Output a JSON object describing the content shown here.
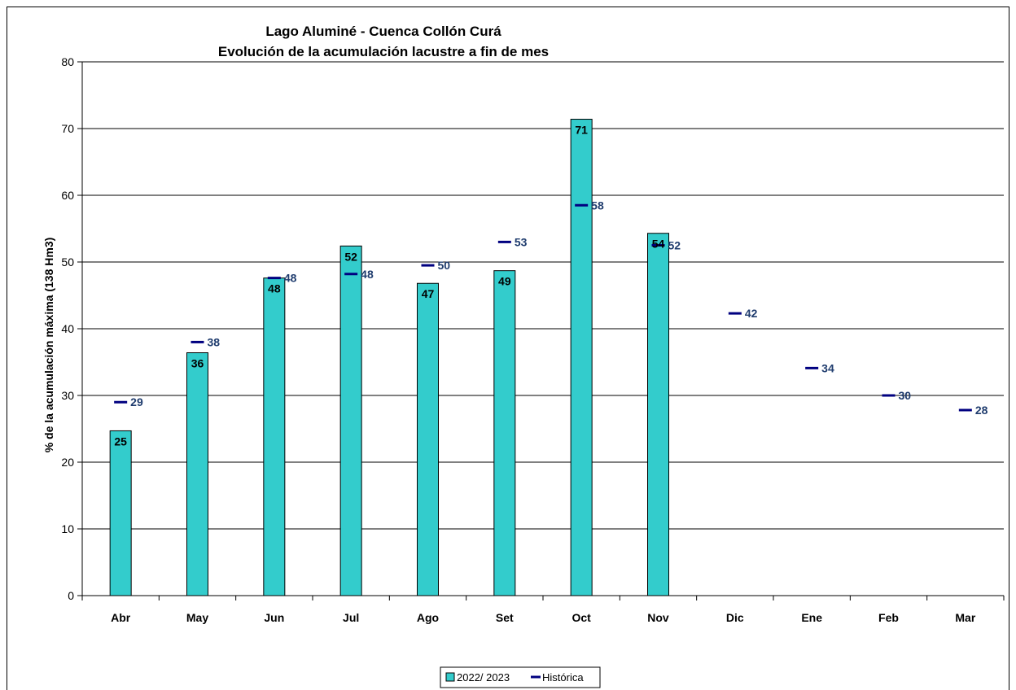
{
  "chart_data": {
    "type": "bar",
    "title": [
      "Lago Aluminé - Cuenca Collón Curá",
      "Evolución de la acumulación lacustre a fin de mes"
    ],
    "xlabel": "",
    "ylabel": "% de la acumulación máxima (138 Hm3)",
    "ylim": [
      0,
      80
    ],
    "yticks": [
      0,
      10,
      20,
      30,
      40,
      50,
      60,
      70,
      80
    ],
    "grid": true,
    "legend_position": "bottom",
    "categories": [
      "Abr",
      "May",
      "Jun",
      "Jul",
      "Ago",
      "Set",
      "Oct",
      "Nov",
      "Dic",
      "Ene",
      "Feb",
      "Mar"
    ],
    "series": [
      {
        "name": "2022/ 2023",
        "kind": "bar",
        "color": "#33cccc",
        "values": [
          24.7,
          36.4,
          47.6,
          52.4,
          46.8,
          48.7,
          71.4,
          54.3,
          null,
          null,
          null,
          null
        ],
        "labels": [
          "25",
          "36",
          "48",
          "52",
          "47",
          "49",
          "71",
          "54",
          "",
          "",
          "",
          ""
        ]
      },
      {
        "name": "Histórica",
        "kind": "marker",
        "color": "#000080",
        "values": [
          29,
          38,
          47.6,
          48.2,
          49.5,
          53,
          58.5,
          52.5,
          42.3,
          34.1,
          30,
          27.8
        ],
        "labels": [
          "29",
          "38",
          "48",
          "48",
          "50",
          "53",
          "58",
          "52",
          "42",
          "34",
          "30",
          "28"
        ]
      }
    ]
  }
}
